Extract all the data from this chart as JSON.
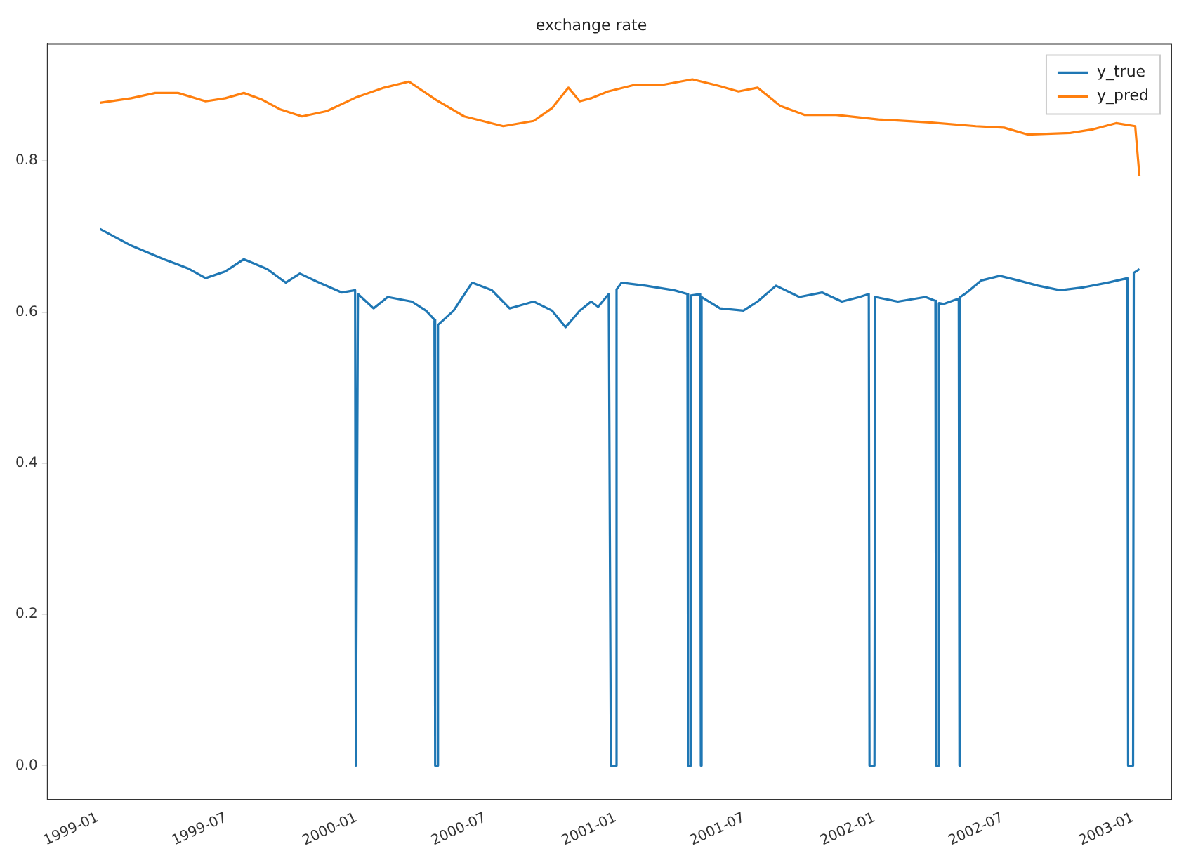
{
  "chart_data": {
    "type": "line",
    "title": "exchange rate",
    "legend": "top right",
    "grid": false,
    "marker": "none",
    "line_style": "solid",
    "xlim": [
      "1998-10-22",
      "2003-02-24"
    ],
    "xticks": [
      "1999-01",
      "1999-07",
      "2000-01",
      "2000-07",
      "2001-01",
      "2001-07",
      "2002-01",
      "2002-07",
      "2003-01"
    ],
    "ylim": [
      -0.045,
      0.955
    ],
    "yticks": [
      {
        "value": 0,
        "label": "0.0"
      },
      0.2,
      0.4,
      0.6,
      0.8
    ],
    "series": [
      {
        "name": "y_true",
        "color": "#1f77b4",
        "x": [
          "1999-01-04",
          "1999-02-17",
          "1999-04-04",
          "1999-05-08",
          "1999-06-02",
          "1999-06-30",
          "1999-07-26",
          "1999-08-28",
          "1999-09-23",
          "1999-10-13",
          "1999-11-07",
          "1999-12-11",
          "1999-12-30",
          "1999-12-31",
          "2000-01-03",
          "2000-01-25",
          "2000-02-14",
          "2000-03-19",
          "2000-04-08",
          "2000-04-20",
          "2000-04-21",
          "2000-04-24",
          "2000-04-25",
          "2000-05-17",
          "2000-06-12",
          "2000-07-10",
          "2000-08-04",
          "2000-09-07",
          "2000-10-03",
          "2000-10-22",
          "2000-11-11",
          "2000-11-27",
          "2000-12-07",
          "2000-12-22",
          "2000-12-25",
          "2000-12-26",
          "2001-01-01",
          "2001-01-02",
          "2001-01-09",
          "2001-02-12",
          "2001-03-24",
          "2001-04-12",
          "2001-04-13",
          "2001-04-16",
          "2001-04-17",
          "2001-04-30",
          "2001-05-01",
          "2001-05-02",
          "2001-05-28",
          "2001-06-30",
          "2001-07-20",
          "2001-08-15",
          "2001-09-17",
          "2001-10-19",
          "2001-11-16",
          "2001-12-11",
          "2001-12-24",
          "2001-12-25",
          "2001-12-26",
          "2002-01-01",
          "2002-01-02",
          "2002-02-03",
          "2002-03-14",
          "2002-03-28",
          "2002-03-29",
          "2002-04-01",
          "2002-04-02",
          "2002-04-09",
          "2002-04-30",
          "2002-05-01",
          "2002-05-02",
          "2002-05-10",
          "2002-06-01",
          "2002-06-27",
          "2002-07-23",
          "2002-08-20",
          "2002-09-20",
          "2002-10-24",
          "2002-11-26",
          "2002-12-24",
          "2002-12-25",
          "2002-12-26",
          "2003-01-01",
          "2003-01-02",
          "2003-01-10"
        ],
        "values": [
          0.71,
          0.688,
          0.67,
          0.658,
          0.645,
          0.654,
          0.67,
          0.657,
          0.639,
          0.651,
          0.64,
          0.626,
          0.629,
          0,
          0.624,
          0.605,
          0.62,
          0.614,
          0.602,
          0.59,
          0,
          0,
          0.583,
          0.602,
          0.639,
          0.629,
          0.605,
          0.614,
          0.602,
          0.58,
          0.602,
          0.614,
          0.607,
          0.624,
          0,
          0,
          0,
          0.63,
          0.639,
          0.635,
          0.629,
          0.624,
          0,
          0,
          0.622,
          0.624,
          0,
          0.62,
          0.605,
          0.602,
          0.614,
          0.635,
          0.62,
          0.626,
          0.614,
          0.62,
          0.624,
          0,
          0,
          0,
          0.62,
          0.614,
          0.62,
          0.615,
          0,
          0,
          0.612,
          0.611,
          0.618,
          0,
          0.62,
          0.625,
          0.642,
          0.648,
          0.642,
          0.635,
          0.629,
          0.633,
          0.639,
          0.645,
          0,
          0,
          0,
          0.652,
          0.657
        ]
      },
      {
        "name": "y_pred",
        "color": "#ff7f0e",
        "x": [
          "1999-01-04",
          "1999-02-17",
          "1999-03-23",
          "1999-04-24",
          "1999-06-02",
          "1999-06-30",
          "1999-07-26",
          "1999-08-21",
          "1999-09-16",
          "1999-10-16",
          "1999-11-20",
          "1999-12-31",
          "2000-02-09",
          "2000-03-15",
          "2000-04-22",
          "2000-06-01",
          "2000-07-26",
          "2000-09-07",
          "2000-10-03",
          "2000-10-26",
          "2000-11-11",
          "2000-11-27",
          "2000-12-21",
          "2001-01-29",
          "2001-03-10",
          "2001-04-19",
          "2001-05-28",
          "2001-06-23",
          "2001-07-20",
          "2001-08-21",
          "2001-09-24",
          "2001-11-08",
          "2002-01-06",
          "2002-03-20",
          "2002-05-24",
          "2002-07-03",
          "2002-08-05",
          "2002-10-04",
          "2002-11-06",
          "2002-12-08",
          "2003-01-04",
          "2003-01-10"
        ],
        "values": [
          0.877,
          0.883,
          0.89,
          0.89,
          0.879,
          0.883,
          0.89,
          0.881,
          0.868,
          0.859,
          0.866,
          0.884,
          0.897,
          0.905,
          0.881,
          0.859,
          0.846,
          0.853,
          0.87,
          0.897,
          0.879,
          0.883,
          0.892,
          0.901,
          0.901,
          0.908,
          0.899,
          0.892,
          0.897,
          0.873,
          0.861,
          0.861,
          0.855,
          0.851,
          0.846,
          0.844,
          0.835,
          0.837,
          0.842,
          0.85,
          0.846,
          0.78
        ]
      }
    ]
  }
}
